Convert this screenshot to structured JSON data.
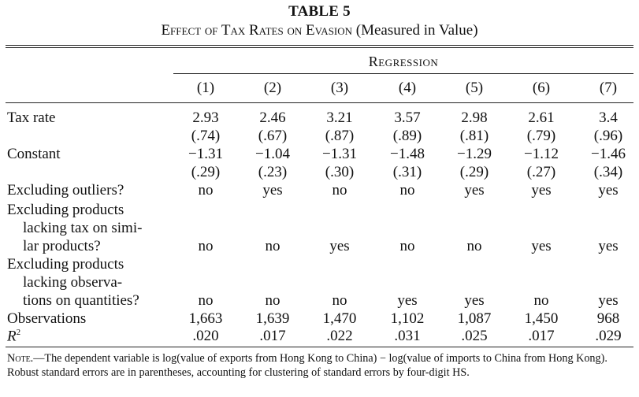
{
  "table": {
    "number": "TABLE 5",
    "caption_smallcaps": "Effect of Tax Rates on Evasion",
    "caption_rest": " (Measured in Value)",
    "group_header": "Regression",
    "columns": [
      "(1)",
      "(2)",
      "(3)",
      "(4)",
      "(5)",
      "(6)",
      "(7)"
    ],
    "rows": [
      {
        "label": "Tax rate",
        "values": [
          "2.93",
          "2.46",
          "3.21",
          "3.57",
          "2.98",
          "2.61",
          "3.4"
        ]
      },
      {
        "label": "",
        "values": [
          "(.74)",
          "(.67)",
          "(.87)",
          "(.89)",
          "(.81)",
          "(.79)",
          "(.96)"
        ]
      },
      {
        "label": "Constant",
        "values": [
          "−1.31",
          "−1.04",
          "−1.31",
          "−1.48",
          "−1.29",
          "−1.12",
          "−1.46"
        ]
      },
      {
        "label": "",
        "values": [
          "(.29)",
          "(.23)",
          "(.30)",
          "(.31)",
          "(.29)",
          "(.27)",
          "(.34)"
        ]
      },
      {
        "label": "Excluding outliers?",
        "values": [
          "no",
          "yes",
          "no",
          "no",
          "yes",
          "yes",
          "yes"
        ]
      },
      {
        "label": "Excluding products",
        "values": []
      },
      {
        "label": "lacking tax on simi-",
        "values": []
      },
      {
        "label": "lar products?",
        "values": [
          "no",
          "no",
          "yes",
          "no",
          "no",
          "yes",
          "yes"
        ]
      },
      {
        "label": "Excluding products",
        "values": []
      },
      {
        "label": "lacking observa-",
        "values": []
      },
      {
        "label": "tions on quantities?",
        "values": [
          "no",
          "no",
          "no",
          "yes",
          "yes",
          "no",
          "yes"
        ]
      },
      {
        "label": "Observations",
        "values": [
          "1,663",
          "1,639",
          "1,470",
          "1,102",
          "1,087",
          "1,450",
          "968"
        ]
      },
      {
        "label": "R",
        "label_sup": "2",
        "values": [
          ".020",
          ".017",
          ".022",
          ".031",
          ".025",
          ".017",
          ".029"
        ]
      }
    ],
    "note_label": "Note.",
    "note_text": "—The dependent variable is log(value of exports from Hong Kong to China) − log(value of imports to China from Hong Kong). Robust standard errors are in parentheses, accounting for clustering of standard errors by four-digit HS."
  }
}
